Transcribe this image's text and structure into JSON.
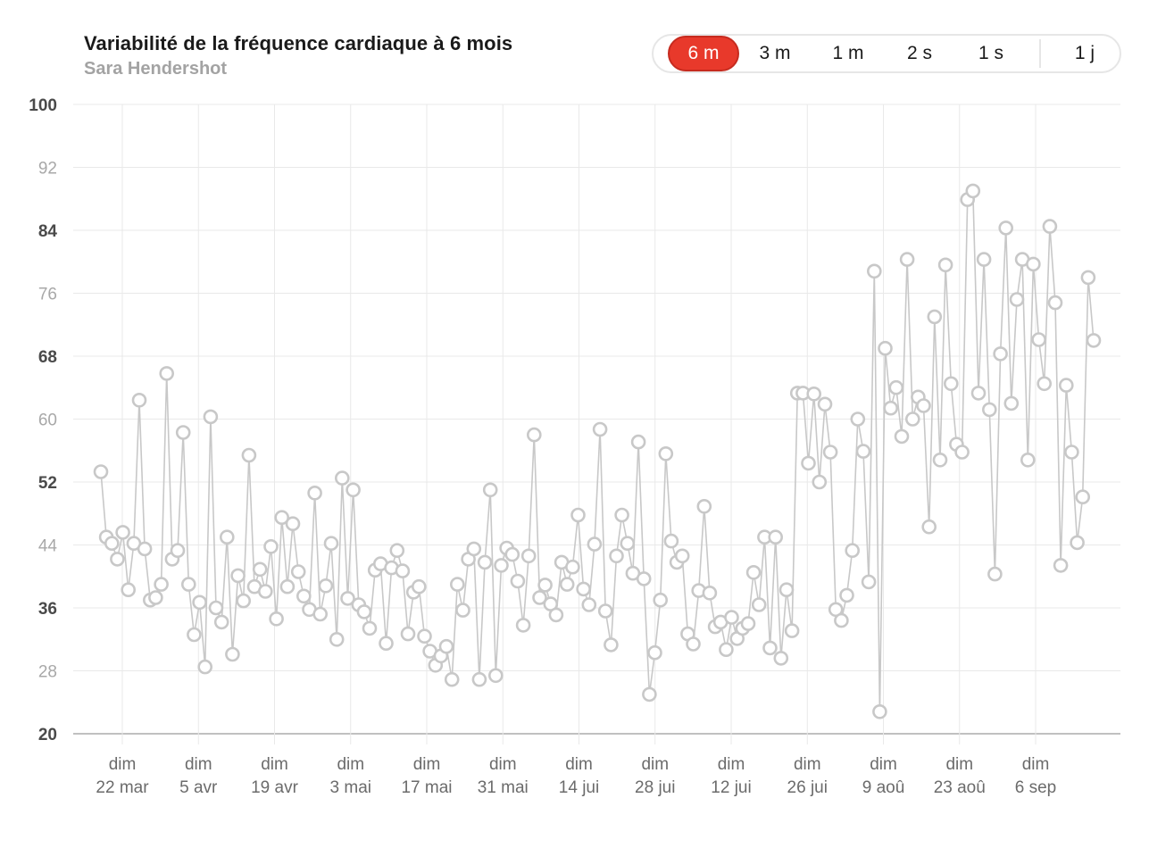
{
  "header": {
    "title": "Variabilité de la fréquence cardiaque à 6 mois",
    "subtitle": "Sara Hendershot"
  },
  "range_selector": {
    "options": [
      "6 m",
      "3 m",
      "1 m",
      "2 s",
      "1 s",
      "1 j"
    ],
    "selected": "6 m"
  },
  "colors": {
    "accent": "#e8392b",
    "series": "#c8c8c8",
    "grid": "#e9e9e9",
    "axis": "#c0c0c0"
  },
  "chart_data": {
    "type": "line",
    "title": "Variabilité de la fréquence cardiaque à 6 mois",
    "subtitle": "Sara Hendershot",
    "xlabel": "",
    "ylabel": "",
    "ylim": [
      20,
      100
    ],
    "yticks": [
      "100",
      "92",
      "84",
      "76",
      "68",
      "60",
      "52",
      "44",
      "36",
      "28",
      "20"
    ],
    "ytick_emphasis": [
      "100",
      "84",
      "68",
      "52",
      "36",
      "20"
    ],
    "xticks": [
      {
        "day": "dim",
        "date": "22 mar"
      },
      {
        "day": "dim",
        "date": "5 avr"
      },
      {
        "day": "dim",
        "date": "19 avr"
      },
      {
        "day": "dim",
        "date": "3 mai"
      },
      {
        "day": "dim",
        "date": "17 mai"
      },
      {
        "day": "dim",
        "date": "31 mai"
      },
      {
        "day": "dim",
        "date": "14 jui"
      },
      {
        "day": "dim",
        "date": "28 jui"
      },
      {
        "day": "dim",
        "date": "12 jui"
      },
      {
        "day": "dim",
        "date": "26 jui"
      },
      {
        "day": "dim",
        "date": "9 aoû"
      },
      {
        "day": "dim",
        "date": "23 aoû"
      },
      {
        "day": "dim",
        "date": "6 sep"
      }
    ],
    "grid": true,
    "legend": "none",
    "series": [
      {
        "values": [
          53.3,
          45,
          44.2,
          42.2,
          45.6,
          38.3,
          44.2,
          62.4,
          43.5,
          37,
          37.3,
          39,
          65.8,
          42.2,
          43.3,
          58.3,
          39,
          32.6,
          36.7,
          28.5,
          60.3,
          36,
          34.2,
          45,
          30.1,
          40.1,
          36.9,
          55.4,
          38.7,
          40.9,
          38.1,
          43.8,
          34.6,
          47.5,
          38.7,
          46.7,
          40.6,
          37.5,
          35.8,
          50.6,
          35.2,
          38.8,
          44.2,
          32,
          52.5,
          37.2,
          51,
          36.4,
          35.5,
          33.4,
          40.8,
          41.6,
          31.5,
          41.1,
          43.3,
          40.7,
          32.7,
          38,
          38.7,
          32.4,
          30.5,
          28.7,
          29.9,
          31.1,
          26.9,
          39,
          35.7,
          42.2,
          43.5,
          26.9,
          41.8,
          51,
          27.4,
          41.4,
          43.6,
          42.8,
          39.4,
          33.8,
          42.6,
          58,
          37.3,
          38.9,
          36.5,
          35.1,
          41.8,
          39,
          41.2,
          47.8,
          38.4,
          36.4,
          44.1,
          58.7,
          35.6,
          31.3,
          42.6,
          47.8,
          44.2,
          40.4,
          57.1,
          39.7,
          25,
          30.3,
          37,
          55.6,
          44.5,
          41.8,
          42.6,
          32.7,
          31.4,
          38.2,
          48.9,
          37.9,
          33.6,
          34.2,
          30.7,
          34.8,
          32.1,
          33.4,
          34,
          40.5,
          36.4,
          45,
          30.9,
          45,
          29.6,
          38.3,
          33.1,
          63.3,
          63.3,
          54.4,
          63.2,
          52,
          61.9,
          55.8,
          35.8,
          34.4,
          37.6,
          43.3,
          60,
          55.9,
          39.3,
          78.8,
          22.8,
          69,
          61.4,
          64,
          57.8,
          80.3,
          60,
          62.8,
          61.7,
          46.3,
          73,
          54.8,
          79.6,
          64.5,
          56.8,
          55.8,
          87.9,
          89,
          63.3,
          80.3,
          61.2,
          40.3,
          68.3,
          84.3,
          62,
          75.2,
          80.3,
          54.8,
          79.7,
          70.1,
          64.5,
          84.5,
          74.8,
          41.4,
          64.3,
          55.8,
          44.3,
          50.1,
          78,
          70
        ]
      }
    ]
  }
}
